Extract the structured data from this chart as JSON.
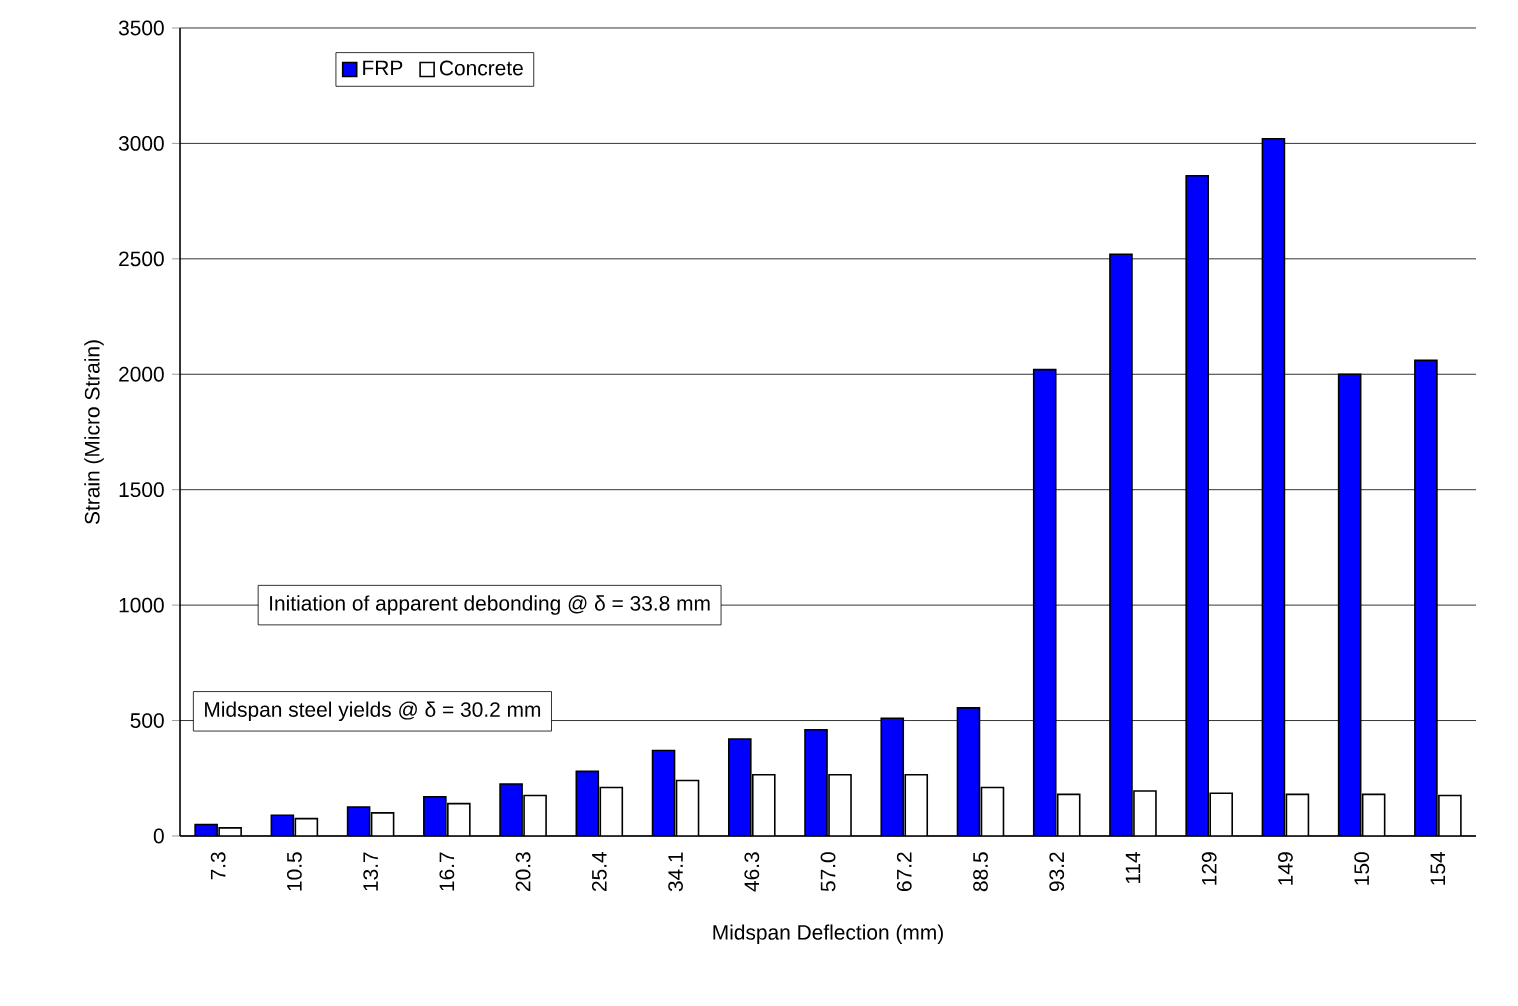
{
  "chart_data": {
    "type": "bar",
    "xlabel": "Midspan Deflection (mm)",
    "ylabel": "Strain (Micro Strain)",
    "categories": [
      "7.3",
      "10.5",
      "13.7",
      "16.7",
      "20.3",
      "25.4",
      "34.1",
      "46.3",
      "57.0",
      "67.2",
      "88.5",
      "93.2",
      "114",
      "129",
      "149",
      "150",
      "154"
    ],
    "series": [
      {
        "name": "FRP",
        "color": "#0000ff",
        "values": [
          50,
          90,
          125,
          170,
          225,
          280,
          370,
          420,
          460,
          510,
          555,
          2020,
          2520,
          2860,
          3020,
          2000,
          2060
        ]
      },
      {
        "name": "Concrete",
        "color": "#ffffff",
        "values": [
          35,
          75,
          100,
          140,
          175,
          210,
          240,
          265,
          265,
          265,
          210,
          180,
          195,
          185,
          180,
          180,
          175
        ]
      }
    ],
    "ylim": [
      0,
      3500
    ],
    "yticks": [
      0,
      500,
      1000,
      1500,
      2000,
      2500,
      3000,
      3500
    ],
    "grid": "y",
    "legend": "top left",
    "annotations": [
      "Initiation of apparent debonding @ δ = 33.8 mm",
      "Midspan steel yields @ δ = 30.2 mm"
    ]
  }
}
